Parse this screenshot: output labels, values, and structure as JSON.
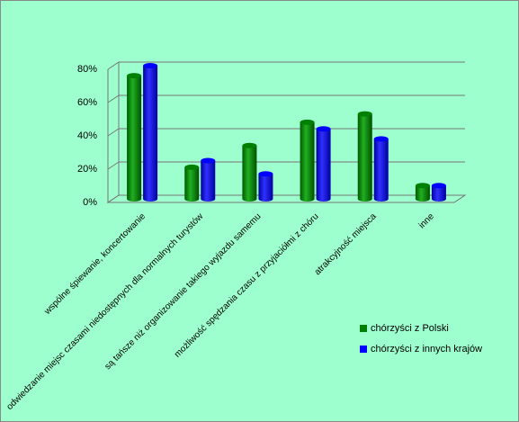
{
  "chart_data": {
    "type": "bar3d",
    "categories": [
      "wspólne śpiewanie, koncertowanie",
      "odwiedzanie miejsc czasami niedostępnych dla normalnych turystów",
      "są tańsze niż organizowanie takiego wyjazdu samemu",
      "możliwość spędzania czasu z przyjaciółmi z chóru",
      "atrakcyjność miejsca",
      "inne"
    ],
    "series": [
      {
        "name": "chórzyści z Polski",
        "color": "#008000",
        "values": [
          74,
          19,
          32,
          46,
          51,
          8
        ]
      },
      {
        "name": "chórzyści z innych krajów",
        "color": "#0000ff",
        "values": [
          80,
          23,
          15,
          42,
          36,
          8
        ]
      }
    ],
    "ylim": [
      0,
      80
    ],
    "yticks": [
      {
        "value": 0,
        "label": "0%"
      },
      {
        "value": 20,
        "label": "20%"
      },
      {
        "value": 40,
        "label": "40%"
      },
      {
        "value": 60,
        "label": "60%"
      },
      {
        "value": 80,
        "label": "80%"
      }
    ],
    "grid": true,
    "legend": "bottom-right"
  }
}
